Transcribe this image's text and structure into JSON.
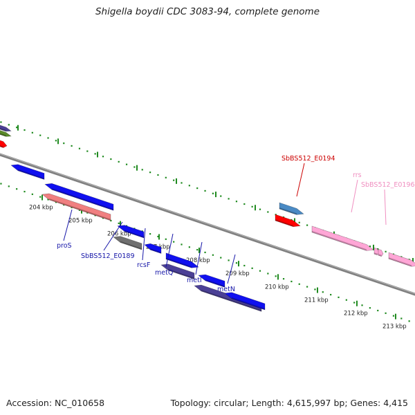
{
  "title": "Shigella boydii CDC 3083-94, complete genome",
  "footer": {
    "accession": "Accession: NC_010658",
    "summary": "Topology: circular; Length: 4,615,997 bp; Genes: 4,415"
  },
  "colors": {
    "backbone": "#808080",
    "tick": "#1f8a1f",
    "label_blue": "#1515a8",
    "label_red": "#cc0000",
    "label_pink": "#f08ec0",
    "gene_blue": "#1010f0",
    "gene_purple": "#4b4096",
    "gene_salmon": "#f07f80",
    "gene_gray": "#707070",
    "gene_red": "#ff0000",
    "gene_steel": "#4a8ac4",
    "gene_pink": "#ffa6d6",
    "gene_olive": "#5a8a2a"
  },
  "axis": {
    "unit": "kbp",
    "tick_labels": [
      "204 kbp",
      "205 kbp",
      "206 kbp",
      "207 kbp",
      "208 kbp",
      "209 kbp",
      "210 kbp",
      "211 kbp",
      "212 kbp",
      "213 kbp"
    ]
  },
  "gene_labels": [
    {
      "text": "proS",
      "color": "label_blue"
    },
    {
      "text": "SbBS512_E0189",
      "color": "label_blue"
    },
    {
      "text": "rcsF",
      "color": "label_blue"
    },
    {
      "text": "metQ",
      "color": "label_blue"
    },
    {
      "text": "metI",
      "color": "label_blue"
    },
    {
      "text": "metN",
      "color": "label_blue"
    },
    {
      "text": "SbBS512_E0194",
      "color": "label_red"
    },
    {
      "text": "rrs",
      "color": "label_pink"
    },
    {
      "text": "SbBS512_E0196",
      "color": "label_pink"
    }
  ],
  "features": [
    {
      "type": "gene",
      "color": "gene_purple",
      "strand": "+"
    },
    {
      "type": "gene",
      "color": "gene_olive",
      "strand": "+"
    },
    {
      "type": "gene",
      "color": "gene_red",
      "strand": "+"
    },
    {
      "type": "gene",
      "color": "gene_blue",
      "strand": "-"
    },
    {
      "type": "gene",
      "color": "gene_blue",
      "strand": "-"
    },
    {
      "type": "gene",
      "color": "gene_salmon",
      "strand": "-"
    },
    {
      "type": "gene",
      "color": "gene_blue",
      "strand": "-"
    },
    {
      "type": "gene",
      "color": "gene_gray",
      "strand": "-"
    },
    {
      "type": "gene",
      "color": "gene_blue",
      "strand": "-"
    },
    {
      "type": "gene",
      "color": "gene_blue",
      "strand": "+"
    },
    {
      "type": "gene",
      "color": "gene_purple",
      "strand": "-"
    },
    {
      "type": "gene",
      "color": "gene_blue",
      "strand": "-"
    },
    {
      "type": "gene",
      "color": "gene_purple",
      "strand": "-"
    },
    {
      "type": "gene",
      "color": "gene_blue",
      "strand": "-"
    },
    {
      "type": "gene",
      "color": "gene_steel",
      "strand": "+"
    },
    {
      "type": "gene",
      "color": "gene_red",
      "strand": "+"
    },
    {
      "type": "rRNA",
      "color": "gene_pink",
      "strand": "+"
    },
    {
      "type": "tRNA",
      "color": "gene_pink",
      "strand": "+"
    },
    {
      "type": "tRNA",
      "color": "gene_pink",
      "strand": "+"
    },
    {
      "type": "rRNA",
      "color": "gene_pink",
      "strand": "+"
    }
  ]
}
